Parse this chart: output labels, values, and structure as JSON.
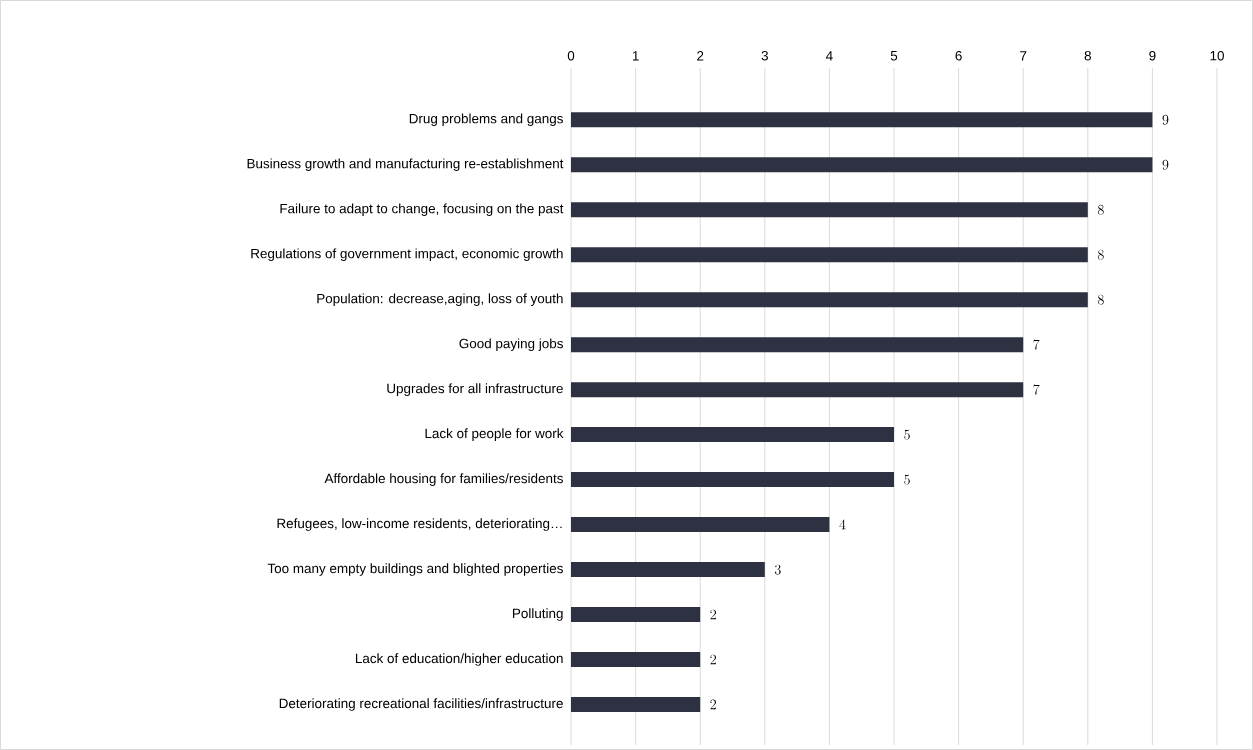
{
  "chart_data": {
    "type": "bar",
    "orientation": "horizontal",
    "categories": [
      "Drug problems and gangs",
      "Business growth and manufacturing re-establishment",
      "Failure to adapt to change, focusing on the past",
      "Regulations of government impact, economic growth",
      "Population: decrease,aging, loss of youth",
      "Good paying jobs",
      "Upgrades for all infrastructure",
      "Lack of people for work",
      "Affordable housing for families/residents",
      "Refugees, low-income residents, deteriorating…",
      "Too many empty buildings and blighted properties",
      "Polluting",
      "Lack of education/higher education",
      "Deteriorating recreational facilities/infrastructure"
    ],
    "values": [
      9,
      9,
      8,
      8,
      8,
      7,
      7,
      5,
      5,
      4,
      3,
      2,
      2,
      2
    ],
    "color": "#2e3142",
    "xlim": [
      0,
      10
    ],
    "xticks": [
      0,
      1,
      2,
      3,
      4,
      5,
      6,
      7,
      8,
      9,
      10
    ],
    "grid": "x",
    "data_labels": true
  }
}
